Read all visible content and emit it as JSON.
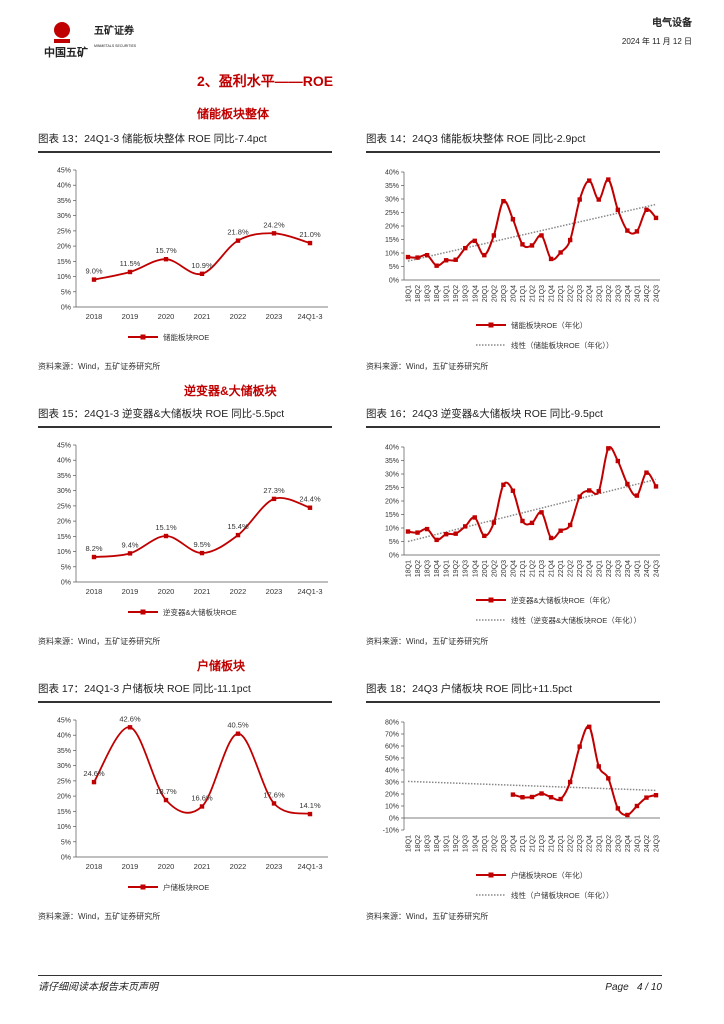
{
  "header": {
    "logo_text": "中国五矿",
    "brand_text": "五矿证券",
    "brand_sub": "MINMETALS SECURITIES",
    "industry": "电气设备",
    "date": "2024 年 11 月 12 日"
  },
  "section_title": "2、盈利水平——ROE",
  "subsections": [
    "储能板块整体",
    "逆变器&大储板块",
    "户储板块"
  ],
  "source": "资料来源：Wind，五矿证券研究所",
  "footer": {
    "disclaimer": "请仔细阅读本报告末页声明",
    "page": "Page   4 / 10"
  },
  "colors": {
    "accent": "#c00000",
    "trend": "#888888"
  },
  "chart_data": [
    {
      "id": "c13",
      "type": "line",
      "title": "图表 13：24Q1-3 储能板块整体 ROE 同比-7.4pct",
      "categories": [
        "2018",
        "2019",
        "2020",
        "2021",
        "2022",
        "2023",
        "24Q1-3"
      ],
      "values": [
        9.0,
        11.5,
        15.7,
        10.9,
        21.8,
        24.2,
        21.0
      ],
      "data_labels": [
        "9.0%",
        "11.5%",
        "15.7%",
        "10.9%",
        "21.8%",
        "24.2%",
        "21.0%"
      ],
      "ylim": [
        0,
        45
      ],
      "yticks": [
        "0%",
        "5%",
        "10%",
        "15%",
        "20%",
        "25%",
        "30%",
        "35%",
        "40%",
        "45%"
      ],
      "legend": [
        "储能板块ROE"
      ],
      "legend_position": "bottom"
    },
    {
      "id": "c14",
      "type": "line",
      "title": "图表 14：24Q3 储能板块整体 ROE 同比-2.9pct",
      "categories": [
        "18Q1",
        "18Q2",
        "18Q3",
        "18Q4",
        "19Q1",
        "19Q2",
        "19Q3",
        "19Q4",
        "20Q1",
        "20Q2",
        "20Q3",
        "20Q4",
        "21Q1",
        "21Q2",
        "21Q3",
        "21Q4",
        "22Q1",
        "22Q2",
        "22Q3",
        "22Q4",
        "23Q1",
        "23Q2",
        "23Q3",
        "23Q4",
        "24Q1",
        "24Q2",
        "24Q3"
      ],
      "values": [
        8.5,
        8.3,
        9.2,
        5.3,
        7.3,
        7.5,
        11.8,
        14.5,
        9.2,
        16.5,
        29.2,
        22.5,
        13.2,
        12.8,
        16.5,
        7.8,
        10.2,
        14.8,
        29.8,
        36.8,
        29.8,
        37.2,
        26.0,
        18.3,
        18.0,
        26.0,
        23.0
      ],
      "trend": [
        7,
        28
      ],
      "ylim": [
        0,
        40
      ],
      "yticks": [
        "0%",
        "5%",
        "10%",
        "15%",
        "20%",
        "25%",
        "30%",
        "35%",
        "40%"
      ],
      "legend": [
        "储能板块ROE（年化）",
        "线性（储能板块ROE（年化））"
      ],
      "legend_position": "bottom"
    },
    {
      "id": "c15",
      "type": "line",
      "title": "图表 15：24Q1-3 逆变器&大储板块 ROE 同比-5.5pct",
      "categories": [
        "2018",
        "2019",
        "2020",
        "2021",
        "2022",
        "2023",
        "24Q1-3"
      ],
      "values": [
        8.2,
        9.4,
        15.1,
        9.5,
        15.4,
        27.3,
        24.4
      ],
      "data_labels": [
        "8.2%",
        "9.4%",
        "15.1%",
        "9.5%",
        "15.4%",
        "27.3%",
        "24.4%"
      ],
      "ylim": [
        0,
        45
      ],
      "yticks": [
        "0%",
        "5%",
        "10%",
        "15%",
        "20%",
        "25%",
        "30%",
        "35%",
        "40%",
        "45%"
      ],
      "legend": [
        "逆变器&大储板块ROE"
      ],
      "legend_position": "bottom"
    },
    {
      "id": "c16",
      "type": "line",
      "title": "图表 16：24Q3 逆变器&大储板块 ROE 同比-9.5pct",
      "categories": [
        "18Q1",
        "18Q2",
        "18Q3",
        "18Q4",
        "19Q1",
        "19Q2",
        "19Q3",
        "19Q4",
        "20Q1",
        "20Q2",
        "20Q3",
        "20Q4",
        "21Q1",
        "21Q2",
        "21Q3",
        "21Q4",
        "22Q1",
        "22Q2",
        "22Q3",
        "22Q4",
        "23Q1",
        "23Q2",
        "23Q3",
        "23Q4",
        "24Q1",
        "24Q2",
        "24Q3"
      ],
      "values": [
        8.7,
        8.3,
        9.6,
        5.6,
        7.7,
        7.9,
        10.6,
        13.9,
        7.1,
        12.0,
        26.0,
        23.8,
        12.6,
        11.9,
        15.8,
        6.3,
        9.0,
        11.1,
        21.6,
        23.9,
        23.6,
        39.5,
        34.8,
        26.3,
        22.0,
        30.5,
        25.4
      ],
      "trend": [
        5,
        28
      ],
      "ylim": [
        0,
        40
      ],
      "yticks": [
        "0%",
        "5%",
        "10%",
        "15%",
        "20%",
        "25%",
        "30%",
        "35%",
        "40%"
      ],
      "legend": [
        "逆变器&大储板块ROE（年化）",
        "线性（逆变器&大储板块ROE（年化））"
      ],
      "legend_position": "bottom"
    },
    {
      "id": "c17",
      "type": "line",
      "title": "图表 17：24Q1-3 户储板块 ROE 同比-11.1pct",
      "categories": [
        "2018",
        "2019",
        "2020",
        "2021",
        "2022",
        "2023",
        "24Q1-3"
      ],
      "values": [
        24.6,
        42.6,
        18.7,
        16.6,
        40.5,
        17.6,
        14.1
      ],
      "data_labels": [
        "24.6%",
        "42.6%",
        "18.7%",
        "16.6%",
        "40.5%",
        "17.6%",
        "14.1%"
      ],
      "ylim": [
        0,
        45
      ],
      "yticks": [
        "0%",
        "5%",
        "10%",
        "15%",
        "20%",
        "25%",
        "30%",
        "35%",
        "40%",
        "45%"
      ],
      "legend": [
        "户储板块ROE"
      ],
      "legend_position": "bottom"
    },
    {
      "id": "c18",
      "type": "line",
      "title": "图表 18：24Q3 户储板块 ROE 同比+11.5pct",
      "categories": [
        "18Q1",
        "18Q2",
        "18Q3",
        "18Q4",
        "19Q1",
        "19Q2",
        "19Q3",
        "19Q4",
        "20Q1",
        "20Q2",
        "20Q3",
        "20Q4",
        "21Q1",
        "21Q2",
        "21Q3",
        "21Q4",
        "22Q1",
        "22Q2",
        "22Q3",
        "22Q4",
        "23Q1",
        "23Q2",
        "23Q3",
        "23Q4",
        "24Q1",
        "24Q2",
        "24Q3"
      ],
      "values": [
        null,
        null,
        null,
        null,
        null,
        null,
        null,
        null,
        null,
        null,
        null,
        19.5,
        17.3,
        17.5,
        20.4,
        17.3,
        15.8,
        30.0,
        59.5,
        76.0,
        43.0,
        33.0,
        8.0,
        2.5,
        10.0,
        17.0,
        19.0
      ],
      "trend": [
        30.5,
        23
      ],
      "ylim": [
        -10,
        80
      ],
      "yticks": [
        "-10%",
        "0%",
        "10%",
        "20%",
        "30%",
        "40%",
        "50%",
        "60%",
        "70%",
        "80%"
      ],
      "legend": [
        "户储板块ROE（年化）",
        "线性（户储板块ROE（年化））"
      ],
      "legend_position": "bottom"
    }
  ]
}
